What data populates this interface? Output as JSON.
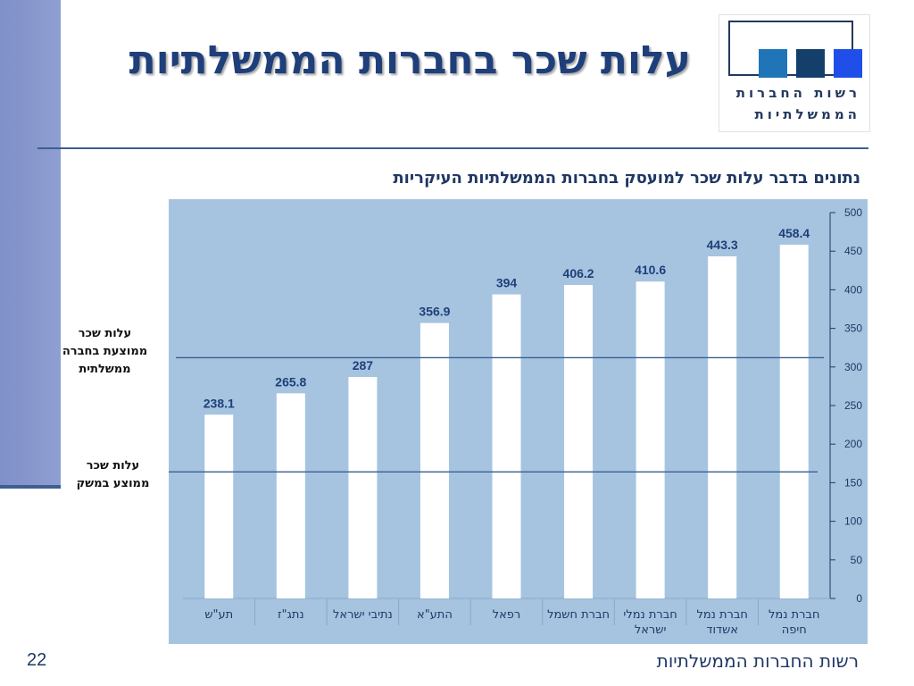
{
  "slide": {
    "title": "עלות שכר בחברות הממשלתיות",
    "page_number": "22",
    "footer": "רשות החברות הממשלתיות",
    "subtitle": "נתונים בדבר עלות שכר למועסק בחברות הממשלתיות העיקריות"
  },
  "logo": {
    "line1": "רשות החברות",
    "line2": "הממשלתיות",
    "colors": [
      "#1f75b8",
      "#153f6b",
      "#1f4fe8"
    ]
  },
  "reference_labels": {
    "gov_avg": [
      "עלות שכר",
      "ממוצעת בחברה",
      "ממשלתית"
    ],
    "economy_avg": [
      "עלות שכר",
      "ממוצע במשק"
    ]
  },
  "colors": {
    "plot_bg": "#a6c4e0",
    "bar": "#ffffff",
    "value_label": "#1f3f7a",
    "axis_text": "#1f3864",
    "ref_line": "#3a5f92"
  },
  "chart_data": {
    "type": "bar",
    "categories": [
      "תע\"ש",
      "נתג\"ז",
      "נתיבי ישראל",
      "התע\"א",
      "רפאל",
      "חברת חשמל",
      "חברת נמלי ישראל",
      "חברת נמל אשדוד",
      "חברת נמל חיפה"
    ],
    "category_lines": [
      [
        "תע\"ש"
      ],
      [
        "נתג\"ז"
      ],
      [
        "נתיבי ישראל"
      ],
      [
        "התע\"א"
      ],
      [
        "רפאל"
      ],
      [
        "חברת חשמל"
      ],
      [
        "חברת נמלי",
        "ישראל"
      ],
      [
        "חברת נמל",
        "אשדוד"
      ],
      [
        "חברת נמל",
        "חיפה"
      ]
    ],
    "values": [
      238.1,
      265.8,
      287,
      356.9,
      394,
      406.2,
      410.6,
      443.3,
      458.4
    ],
    "value_labels": [
      "238.1",
      "265.8",
      "287",
      "356.9",
      "394",
      "406.2",
      "410.6",
      "443.3",
      "458.4"
    ],
    "ylim": [
      0,
      500
    ],
    "yticks": [
      0,
      50,
      100,
      150,
      200,
      250,
      300,
      350,
      400,
      450,
      500
    ],
    "y_axis_side": "right",
    "reference_lines": [
      {
        "key": "gov_avg",
        "value": 312
      },
      {
        "key": "economy_avg",
        "value": 164
      }
    ],
    "grid": false,
    "legend": "none"
  }
}
